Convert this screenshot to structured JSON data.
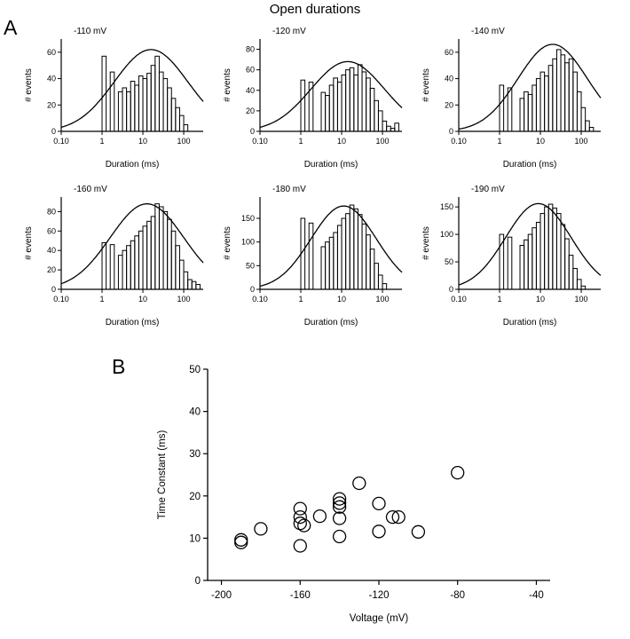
{
  "title": "Open durations",
  "panelA": {
    "label": "A"
  },
  "panelB": {
    "label": "B"
  },
  "chart_data": [
    {
      "type": "bar",
      "subtype": "histogram",
      "panel": "A",
      "title": "-110 mV",
      "xlabel": "Duration (ms)",
      "ylabel": "# events",
      "xscale": "log",
      "xlim": [
        0.1,
        300
      ],
      "xticks": [
        0.1,
        1,
        10,
        100
      ],
      "xtick_labels": [
        "0.10",
        "1",
        "10",
        "100"
      ],
      "ylim": [
        0,
        70
      ],
      "yticks": [
        0,
        20,
        40,
        60
      ],
      "bins": {
        "log10_start": 0.0,
        "log10_width": 0.1,
        "heights": [
          57,
          0,
          45,
          0,
          30,
          33,
          30,
          38,
          35,
          42,
          40,
          44,
          50,
          57,
          45,
          40,
          33,
          25,
          18,
          12,
          5,
          0,
          0,
          0
        ]
      },
      "fit_curve": {
        "shape": "lognormal",
        "amplitude": 62,
        "mu_log10": 1.2,
        "sigma_log10": 0.9
      }
    },
    {
      "type": "bar",
      "subtype": "histogram",
      "panel": "A",
      "title": "-120 mV",
      "xlabel": "Duration (ms)",
      "ylabel": "# events",
      "xscale": "log",
      "xlim": [
        0.1,
        300
      ],
      "xticks": [
        0.1,
        1,
        10,
        100
      ],
      "xtick_labels": [
        "0.10",
        "1",
        "10",
        "100"
      ],
      "ylim": [
        0,
        90
      ],
      "yticks": [
        0,
        20,
        40,
        60,
        80
      ],
      "bins": {
        "log10_start": 0.0,
        "log10_width": 0.1,
        "heights": [
          50,
          0,
          48,
          0,
          0,
          38,
          35,
          45,
          52,
          48,
          55,
          60,
          62,
          55,
          65,
          58,
          52,
          42,
          30,
          20,
          10,
          5,
          3,
          8
        ]
      },
      "fit_curve": {
        "shape": "lognormal",
        "amplitude": 68,
        "mu_log10": 1.15,
        "sigma_log10": 0.9
      }
    },
    {
      "type": "bar",
      "subtype": "histogram",
      "panel": "A",
      "title": "-140 mV",
      "xlabel": "Duration (ms)",
      "ylabel": "# events",
      "xscale": "log",
      "xlim": [
        0.1,
        300
      ],
      "xticks": [
        0.1,
        1,
        10,
        100
      ],
      "xtick_labels": [
        "0.10",
        "1",
        "10",
        "100"
      ],
      "ylim": [
        0,
        70
      ],
      "yticks": [
        0,
        20,
        40,
        60
      ],
      "bins": {
        "log10_start": 0.0,
        "log10_width": 0.1,
        "heights": [
          35,
          0,
          33,
          0,
          0,
          25,
          30,
          28,
          35,
          40,
          45,
          42,
          50,
          55,
          62,
          58,
          52,
          55,
          45,
          30,
          18,
          8,
          3,
          0
        ]
      },
      "fit_curve": {
        "shape": "lognormal",
        "amplitude": 66,
        "mu_log10": 1.3,
        "sigma_log10": 0.85
      }
    },
    {
      "type": "bar",
      "subtype": "histogram",
      "panel": "A",
      "title": "-160 mV",
      "xlabel": "Duration (ms)",
      "ylabel": "# events",
      "xscale": "log",
      "xlim": [
        0.1,
        300
      ],
      "xticks": [
        0.1,
        1,
        10,
        100
      ],
      "xtick_labels": [
        "0.10",
        "1",
        "10",
        "100"
      ],
      "ylim": [
        0,
        95
      ],
      "yticks": [
        0,
        20,
        40,
        60,
        80
      ],
      "bins": {
        "log10_start": 0.0,
        "log10_width": 0.1,
        "heights": [
          48,
          0,
          46,
          0,
          35,
          40,
          45,
          50,
          55,
          60,
          65,
          70,
          75,
          88,
          85,
          80,
          72,
          60,
          45,
          30,
          18,
          10,
          8,
          5
        ]
      },
      "fit_curve": {
        "shape": "lognormal",
        "amplitude": 88,
        "mu_log10": 1.1,
        "sigma_log10": 0.9
      }
    },
    {
      "type": "bar",
      "subtype": "histogram",
      "panel": "A",
      "title": "-180 mV",
      "xlabel": "Duration (ms)",
      "ylabel": "# events",
      "xscale": "log",
      "xlim": [
        0.1,
        300
      ],
      "xticks": [
        0.1,
        1,
        10,
        100
      ],
      "xtick_labels": [
        "0.10",
        "1",
        "10",
        "100"
      ],
      "ylim": [
        0,
        195
      ],
      "yticks": [
        0,
        50,
        100,
        150
      ],
      "bins": {
        "log10_start": 0.0,
        "log10_width": 0.1,
        "heights": [
          150,
          0,
          140,
          0,
          0,
          90,
          100,
          110,
          120,
          135,
          150,
          160,
          178,
          170,
          158,
          138,
          115,
          85,
          55,
          30,
          12,
          0,
          0,
          0
        ]
      },
      "fit_curve": {
        "shape": "lognormal",
        "amplitude": 176,
        "mu_log10": 1.05,
        "sigma_log10": 0.8
      }
    },
    {
      "type": "bar",
      "subtype": "histogram",
      "panel": "A",
      "title": "-190 mV",
      "xlabel": "Duration (ms)",
      "ylabel": "# events",
      "xscale": "log",
      "xlim": [
        0.1,
        300
      ],
      "xticks": [
        0.1,
        1,
        10,
        100
      ],
      "xtick_labels": [
        "0.10",
        "1",
        "10",
        "100"
      ],
      "ylim": [
        0,
        168
      ],
      "yticks": [
        0,
        50,
        100,
        150
      ],
      "bins": {
        "log10_start": 0.0,
        "log10_width": 0.1,
        "heights": [
          100,
          0,
          95,
          0,
          0,
          80,
          90,
          100,
          112,
          122,
          138,
          150,
          155,
          148,
          138,
          118,
          92,
          62,
          38,
          18,
          6,
          0,
          0,
          0
        ]
      },
      "fit_curve": {
        "shape": "lognormal",
        "amplitude": 156,
        "mu_log10": 0.95,
        "sigma_log10": 0.8
      }
    },
    {
      "type": "scatter",
      "panel": "B",
      "xlabel": "Voltage (mV)",
      "ylabel": "Time Constant (ms)",
      "xlim": [
        -207,
        -33
      ],
      "xticks": [
        -200,
        -160,
        -120,
        -80,
        -40
      ],
      "ylim": [
        0,
        50
      ],
      "yticks": [
        0,
        10,
        20,
        30,
        40,
        50
      ],
      "points": [
        [
          -190,
          9.0
        ],
        [
          -190,
          9.6
        ],
        [
          -180,
          12.2
        ],
        [
          -160,
          17.0
        ],
        [
          -160,
          15.0
        ],
        [
          -160,
          13.5
        ],
        [
          -158,
          13.0
        ],
        [
          -160,
          8.2
        ],
        [
          -150,
          15.2
        ],
        [
          -140,
          19.3
        ],
        [
          -140,
          18.3
        ],
        [
          -140,
          17.4
        ],
        [
          -140,
          14.7
        ],
        [
          -140,
          10.4
        ],
        [
          -130,
          23.0
        ],
        [
          -120,
          18.2
        ],
        [
          -120,
          11.6
        ],
        [
          -113,
          15.0
        ],
        [
          -110,
          15.0
        ],
        [
          -100,
          11.5
        ],
        [
          -80,
          25.5
        ]
      ]
    }
  ]
}
